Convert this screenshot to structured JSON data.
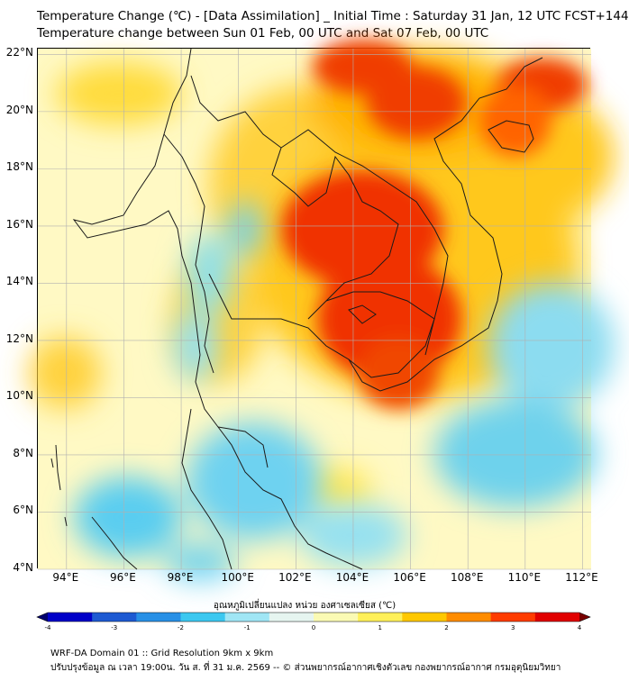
{
  "header": {
    "title": "Temperature Change (℃) - [Data Assimilation] _ Initial Time : Saturday 31 Jan, 12 UTC FCST+144",
    "subtitle": "Temperature change between Sun 01 Feb, 00 UTC and Sat 07 Feb, 00 UTC"
  },
  "map": {
    "y_ticks": [
      "22°N",
      "20°N",
      "18°N",
      "16°N",
      "14°N",
      "12°N",
      "10°N",
      "8°N",
      "6°N",
      "4°N"
    ],
    "x_ticks": [
      "94°E",
      "96°E",
      "98°E",
      "100°E",
      "102°E",
      "104°E",
      "106°E",
      "108°E",
      "110°E",
      "112°E"
    ],
    "lat_range": [
      4,
      22.2
    ],
    "lon_range": [
      93,
      112.3
    ],
    "background_color": "#fff9c4"
  },
  "colorbar": {
    "title": "อุณหภูมิเปลี่ยนแปลง หน่วย องศาเซลเซียส (℃)",
    "ticks": [
      "-4",
      "-3",
      "-2",
      "-1",
      "0",
      "1",
      "2",
      "3",
      "4"
    ],
    "range": [
      -4,
      4
    ],
    "colors": [
      "#00006e",
      "#0000c8",
      "#1e5ad2",
      "#2890e6",
      "#3cc8f0",
      "#a0e6f5",
      "#e6f5f0",
      "#fafab4",
      "#fff05a",
      "#ffc800",
      "#ff8c00",
      "#ff3c00",
      "#e10000",
      "#780000"
    ]
  },
  "footer": {
    "line1": "WRF-DA Domain 01 :: Grid Resolution 9km x 9km",
    "line2": "ปรับปรุงข้อมูล ณ เวลา 19:00น. วัน ส. ที่ 31 ม.ค. 2569 -- © ส่วนพยากรณ์อากาศเชิงตัวเลข กองพยากรณ์อากาศ กรมอุตุนิยมวิทยา"
  }
}
